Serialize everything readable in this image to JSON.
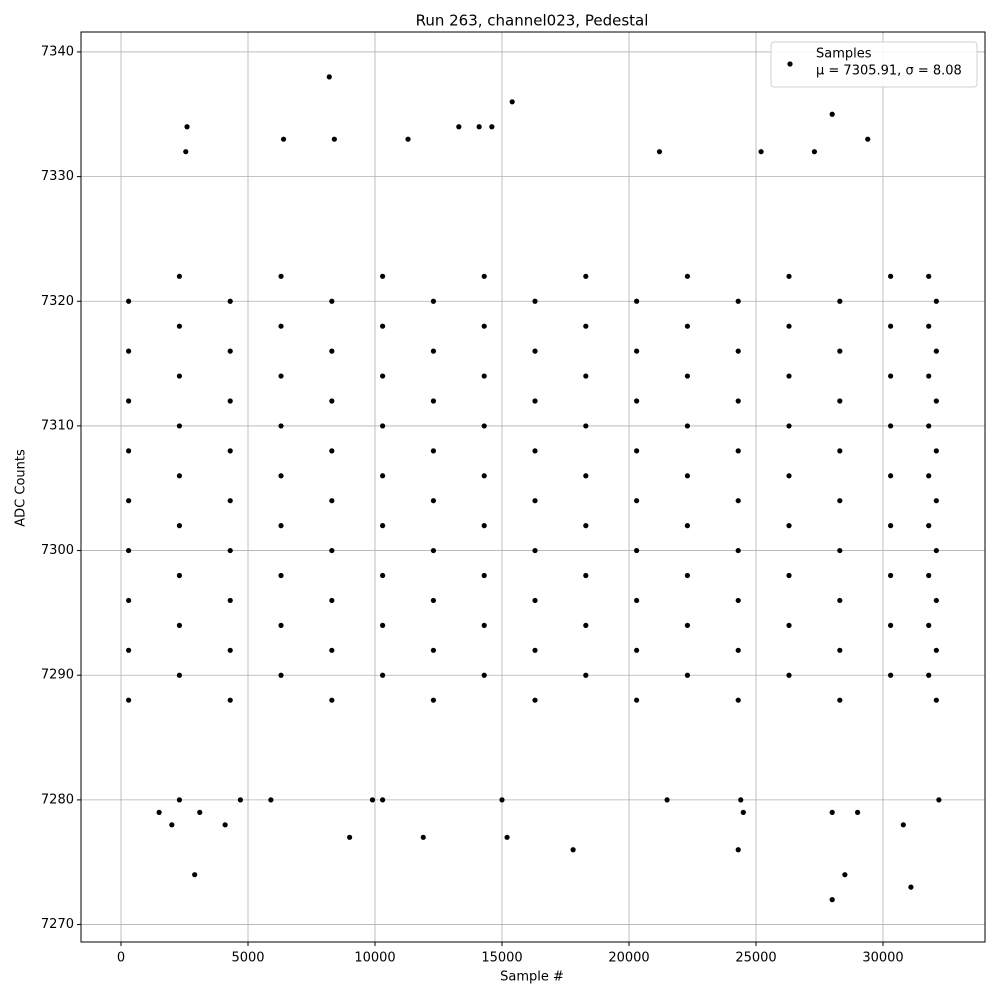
{
  "chart_data": {
    "type": "scatter",
    "title": "Run 263, channel023, Pedestal",
    "xlabel": "Sample #",
    "ylabel": "ADC Counts",
    "xlim": [
      -1575,
      34016
    ],
    "ylim": [
      7268.6,
      7341.6
    ],
    "xticks": [
      0,
      5000,
      10000,
      15000,
      20000,
      25000,
      30000
    ],
    "yticks": [
      7270,
      7280,
      7290,
      7300,
      7310,
      7320,
      7330,
      7340
    ],
    "grid": true,
    "legend": "upper right",
    "annotation": "μ = 7305.91, σ = 8.08",
    "series": [
      {
        "name": "Samples",
        "color": "#000000",
        "x": [
          300,
          4300,
          8300,
          12300,
          16300,
          20300,
          24300,
          28300,
          32100,
          2300,
          6300,
          10300,
          14300,
          18300,
          22300,
          26300,
          30300,
          31800,
          300,
          4300,
          8300,
          12300,
          16300,
          20300,
          24300,
          28300,
          32100,
          2300,
          6300,
          10300,
          14300,
          18300,
          22300,
          26300,
          30300,
          31800,
          300,
          4300,
          8300,
          12300,
          16300,
          20300,
          24300,
          28300,
          32100,
          2300,
          6300,
          10300,
          14300,
          18300,
          22300,
          26300,
          30300,
          31800,
          300,
          4300,
          8300,
          12300,
          16300,
          20300,
          24300,
          28300,
          32100,
          2300,
          6300,
          10300,
          14300,
          18300,
          22300,
          26300,
          30300,
          31800,
          300,
          4300,
          8300,
          12300,
          16300,
          20300,
          24300,
          28300,
          32100,
          2300,
          6300,
          10300,
          14300,
          18300,
          22300,
          26300,
          30300,
          31800,
          300,
          4300,
          8300,
          12300,
          16300,
          20300,
          24300,
          28300,
          32100,
          2300,
          6300,
          10300,
          14300,
          18300,
          22300,
          26300,
          30300,
          31800,
          300,
          4300,
          8300,
          12300,
          16300,
          20300,
          24300,
          28300,
          32100,
          2300,
          6300,
          10300,
          14300,
          18300,
          22300,
          26300,
          30300,
          31800,
          300,
          4300,
          8300,
          12300,
          16300,
          20300,
          24300,
          28300,
          32100,
          2300,
          6300,
          10300,
          14300,
          18300,
          22300,
          26300,
          30300,
          31800,
          300,
          4300,
          8300,
          12300,
          16300,
          20300,
          24300,
          28300,
          32100,
          2300,
          6300,
          10300,
          14300,
          18300,
          22300,
          26300,
          30300,
          31800,
          2600,
          2550,
          2900,
          8200,
          8400,
          6400,
          9000,
          11900,
          15400,
          15200,
          17800,
          24300,
          28000,
          28000,
          28500,
          31100,
          30800,
          29400,
          21200,
          13300,
          14100,
          14600,
          11300,
          27300,
          25200,
          2000,
          4100,
          1500,
          3100,
          9900,
          15000,
          21500,
          24500,
          28000,
          29000,
          32200,
          10300,
          5900,
          2300,
          4700,
          24400
        ],
        "values": [
          7288,
          7288,
          7288,
          7288,
          7288,
          7288,
          7288,
          7288,
          7288,
          7290,
          7290,
          7290,
          7290,
          7290,
          7290,
          7290,
          7290,
          7290,
          7292,
          7292,
          7292,
          7292,
          7292,
          7292,
          7292,
          7292,
          7292,
          7294,
          7294,
          7294,
          7294,
          7294,
          7294,
          7294,
          7294,
          7294,
          7296,
          7296,
          7296,
          7296,
          7296,
          7296,
          7296,
          7296,
          7296,
          7298,
          7298,
          7298,
          7298,
          7298,
          7298,
          7298,
          7298,
          7298,
          7300,
          7300,
          7300,
          7300,
          7300,
          7300,
          7300,
          7300,
          7300,
          7302,
          7302,
          7302,
          7302,
          7302,
          7302,
          7302,
          7302,
          7302,
          7304,
          7304,
          7304,
          7304,
          7304,
          7304,
          7304,
          7304,
          7304,
          7306,
          7306,
          7306,
          7306,
          7306,
          7306,
          7306,
          7306,
          7306,
          7308,
          7308,
          7308,
          7308,
          7308,
          7308,
          7308,
          7308,
          7308,
          7310,
          7310,
          7310,
          7310,
          7310,
          7310,
          7310,
          7310,
          7310,
          7312,
          7312,
          7312,
          7312,
          7312,
          7312,
          7312,
          7312,
          7312,
          7314,
          7314,
          7314,
          7314,
          7314,
          7314,
          7314,
          7314,
          7314,
          7316,
          7316,
          7316,
          7316,
          7316,
          7316,
          7316,
          7316,
          7316,
          7318,
          7318,
          7318,
          7318,
          7318,
          7318,
          7318,
          7318,
          7318,
          7320,
          7320,
          7320,
          7320,
          7320,
          7320,
          7320,
          7320,
          7320,
          7322,
          7322,
          7322,
          7322,
          7322,
          7322,
          7322,
          7322,
          7322,
          7334,
          7332,
          7274,
          7338,
          7333,
          7333,
          7277,
          7277,
          7336,
          7277,
          7276,
          7276,
          7335,
          7272,
          7274,
          7273,
          7278,
          7333,
          7332,
          7334,
          7334,
          7334,
          7333,
          7332,
          7332,
          7278,
          7278,
          7279,
          7279,
          7280,
          7280,
          7280,
          7279,
          7279,
          7279,
          7280,
          7280,
          7280,
          7280,
          7280,
          7280
        ]
      }
    ]
  }
}
